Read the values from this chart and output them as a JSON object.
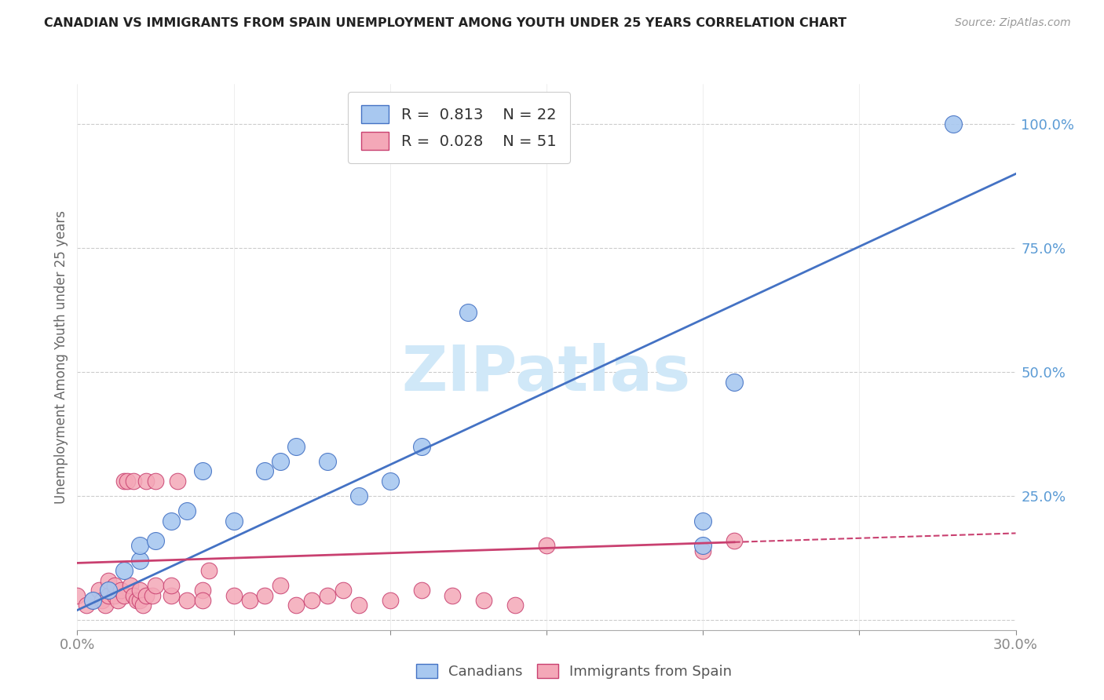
{
  "title": "CANADIAN VS IMMIGRANTS FROM SPAIN UNEMPLOYMENT AMONG YOUTH UNDER 25 YEARS CORRELATION CHART",
  "source": "Source: ZipAtlas.com",
  "ylabel": "Unemployment Among Youth under 25 years",
  "xlim": [
    0.0,
    0.3
  ],
  "ylim": [
    -0.02,
    1.08
  ],
  "xticks": [
    0.0,
    0.05,
    0.1,
    0.15,
    0.2,
    0.25,
    0.3
  ],
  "xtick_labels": [
    "0.0%",
    "",
    "",
    "",
    "",
    "",
    "30.0%"
  ],
  "ytick_positions": [
    0.0,
    0.25,
    0.5,
    0.75,
    1.0
  ],
  "ytick_labels": [
    "",
    "25.0%",
    "50.0%",
    "75.0%",
    "100.0%"
  ],
  "canadians_x": [
    0.005,
    0.01,
    0.015,
    0.02,
    0.02,
    0.025,
    0.03,
    0.035,
    0.04,
    0.05,
    0.06,
    0.065,
    0.07,
    0.08,
    0.09,
    0.1,
    0.11,
    0.125,
    0.2,
    0.2,
    0.21,
    0.28
  ],
  "canadians_y": [
    0.04,
    0.06,
    0.1,
    0.12,
    0.15,
    0.16,
    0.2,
    0.22,
    0.3,
    0.2,
    0.3,
    0.32,
    0.35,
    0.32,
    0.25,
    0.28,
    0.35,
    0.62,
    0.15,
    0.2,
    0.48,
    1.0
  ],
  "spain_x": [
    0.0,
    0.003,
    0.005,
    0.007,
    0.008,
    0.009,
    0.01,
    0.01,
    0.012,
    0.012,
    0.013,
    0.014,
    0.015,
    0.015,
    0.016,
    0.017,
    0.018,
    0.018,
    0.019,
    0.02,
    0.02,
    0.021,
    0.022,
    0.022,
    0.024,
    0.025,
    0.025,
    0.03,
    0.03,
    0.032,
    0.035,
    0.04,
    0.04,
    0.042,
    0.05,
    0.055,
    0.06,
    0.065,
    0.07,
    0.075,
    0.08,
    0.085,
    0.09,
    0.1,
    0.11,
    0.12,
    0.13,
    0.14,
    0.15,
    0.2,
    0.21
  ],
  "spain_y": [
    0.05,
    0.03,
    0.04,
    0.06,
    0.04,
    0.03,
    0.05,
    0.08,
    0.05,
    0.07,
    0.04,
    0.06,
    0.05,
    0.28,
    0.28,
    0.07,
    0.05,
    0.28,
    0.04,
    0.04,
    0.06,
    0.03,
    0.05,
    0.28,
    0.05,
    0.07,
    0.28,
    0.05,
    0.07,
    0.28,
    0.04,
    0.06,
    0.04,
    0.1,
    0.05,
    0.04,
    0.05,
    0.07,
    0.03,
    0.04,
    0.05,
    0.06,
    0.03,
    0.04,
    0.06,
    0.05,
    0.04,
    0.03,
    0.15,
    0.14,
    0.16
  ],
  "R_canadians": "0.813",
  "N_canadians": "22",
  "R_spain": "0.028",
  "N_spain": "51",
  "color_canadians": "#a8c8f0",
  "color_spain": "#f4a8b8",
  "color_canadians_line": "#4472c4",
  "color_spain_line": "#c94070",
  "color_axis_labels": "#5b9bd5",
  "watermark_color": "#d0e8f8",
  "background_color": "#ffffff"
}
